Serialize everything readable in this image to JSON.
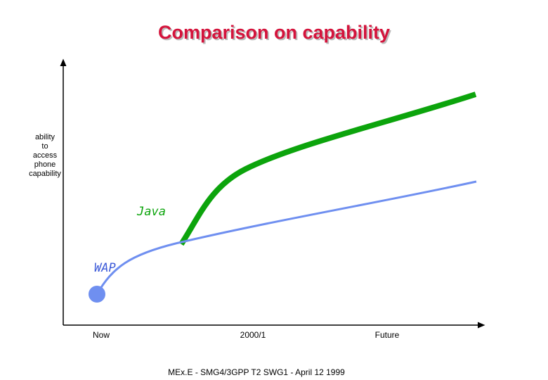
{
  "header": {
    "title": "Comparison on capability"
  },
  "diagram": {
    "y_axis_label": [
      "ability",
      "to",
      "access",
      "phone",
      "capability"
    ],
    "x_labels": [
      "Now",
      "2000/1",
      "Future"
    ],
    "curves": [
      {
        "label": "Java"
      },
      {
        "label": "WAP"
      }
    ]
  },
  "footer": {
    "text": "MEx.E - SMG4/3GPP T2 SWG1 - April 12 1999"
  }
}
